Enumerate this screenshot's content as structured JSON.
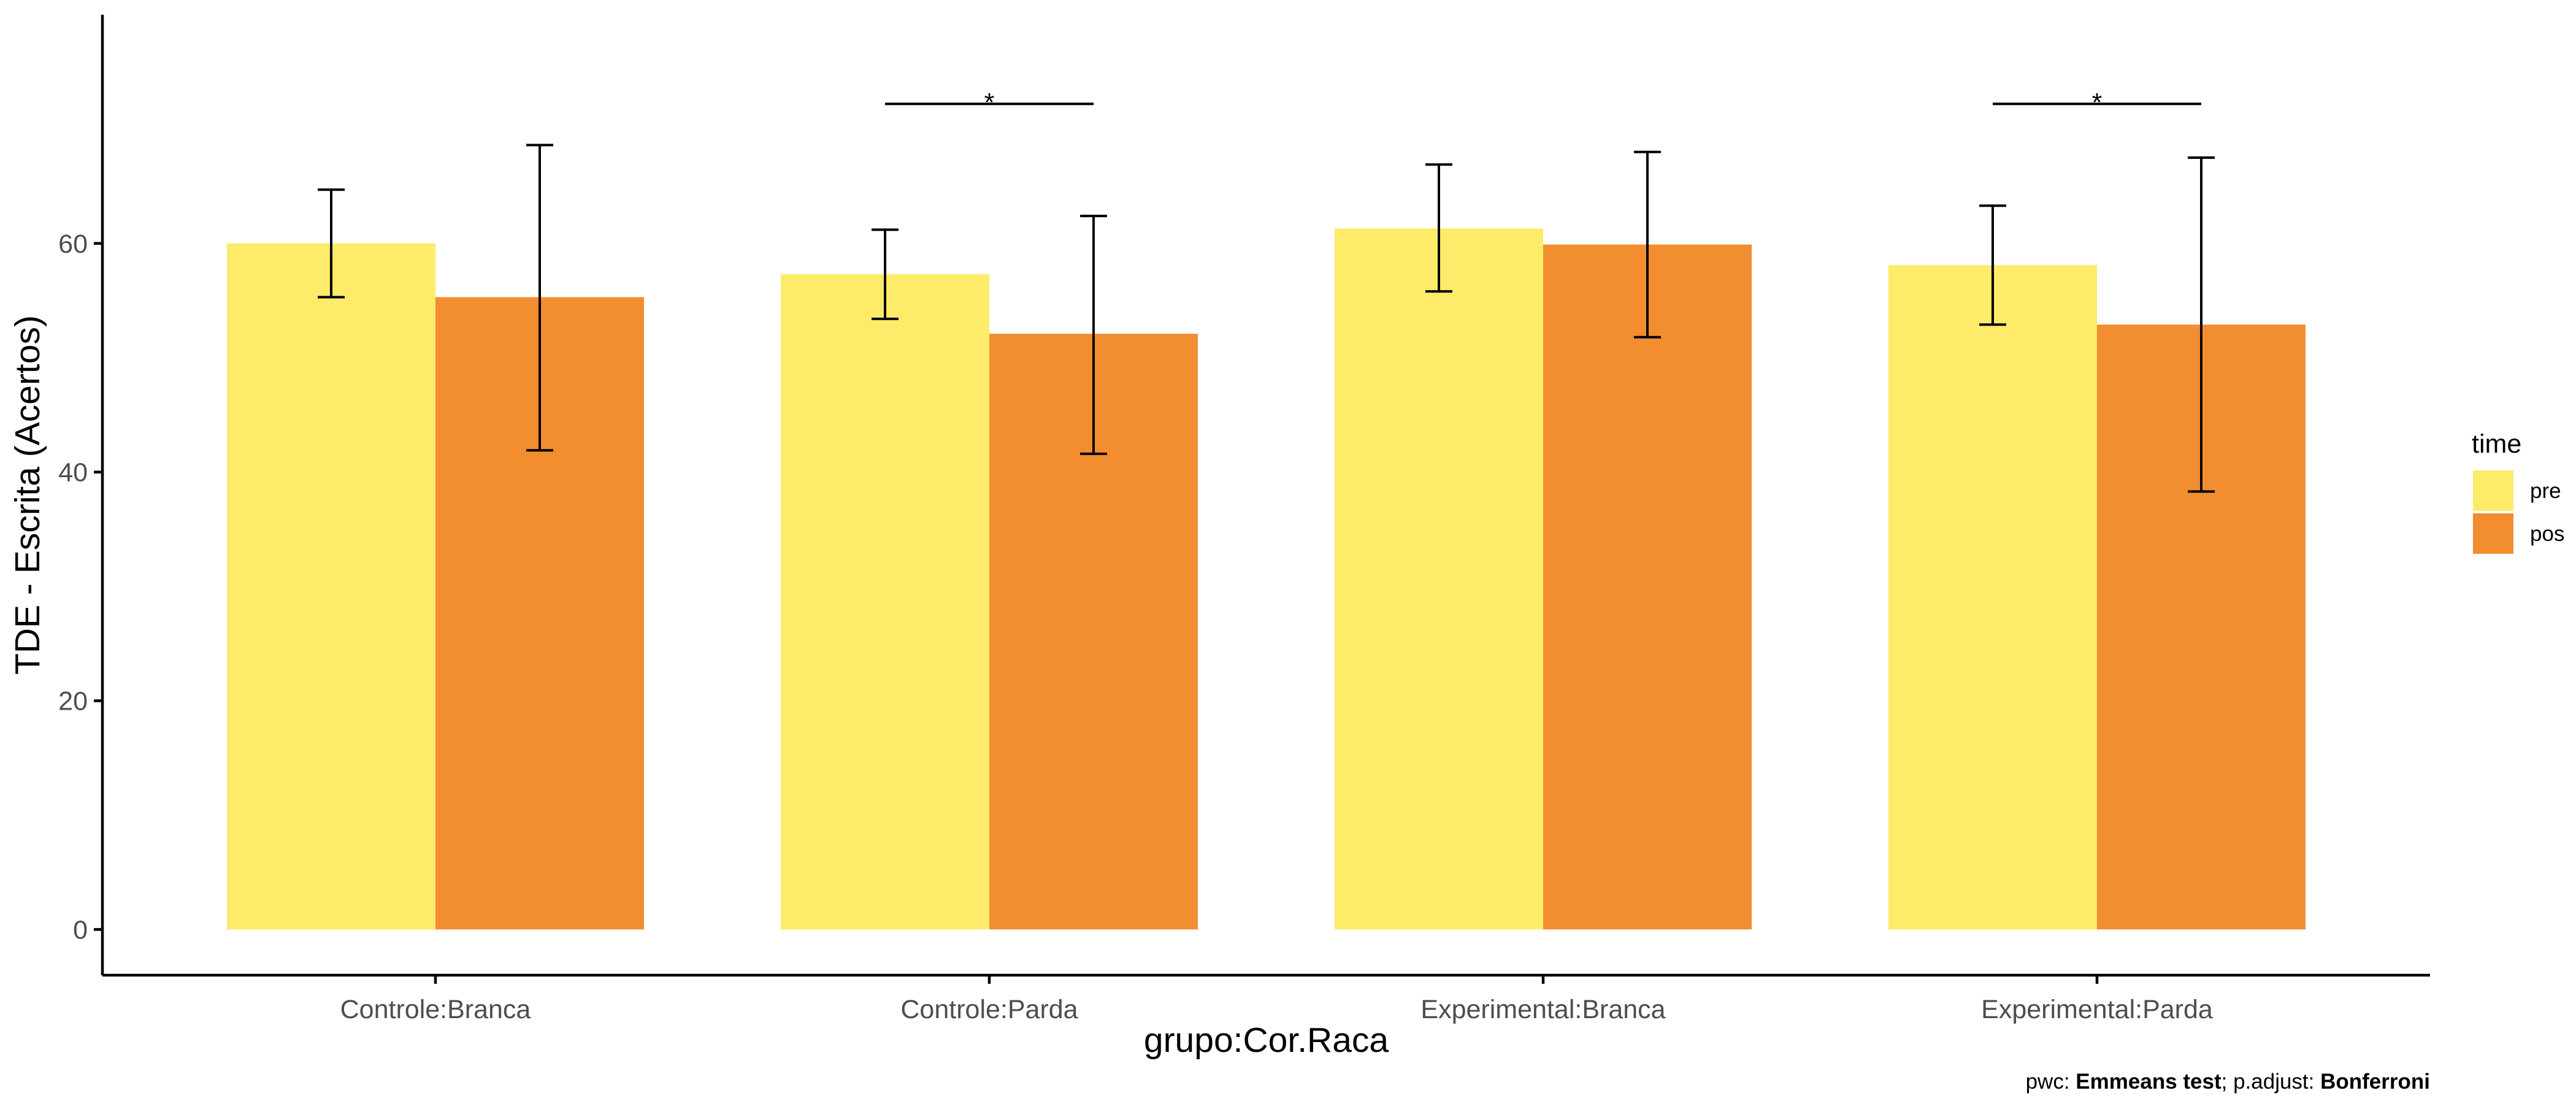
{
  "chart_data": {
    "type": "bar",
    "title": "",
    "xlabel": "grupo:Cor.Raca",
    "ylabel": "TDE - Escrita (Acertos)",
    "ylim": [
      -4,
      80
    ],
    "yticks": [
      0,
      20,
      40,
      60
    ],
    "grid": false,
    "categories": [
      "Controle:Branca",
      "Controle:Parda",
      "Experimental:Branca",
      "Experimental:Parda"
    ],
    "legend": {
      "title": "time",
      "placement": "right"
    },
    "series": [
      {
        "name": "pre",
        "color": "#FDEB69",
        "values": [
          60.0,
          57.3,
          61.3,
          58.1
        ],
        "error_low": [
          55.3,
          53.4,
          55.8,
          52.9
        ],
        "error_high": [
          64.7,
          61.2,
          66.9,
          63.3
        ]
      },
      {
        "name": "pos",
        "color": "#F28E2F",
        "values": [
          55.3,
          52.1,
          59.9,
          52.9
        ],
        "error_low": [
          41.9,
          41.6,
          51.8,
          38.3
        ],
        "error_high": [
          68.6,
          62.4,
          68.0,
          67.5
        ]
      }
    ],
    "significance": [
      {
        "category": "Controle:Parda",
        "label": "*",
        "y": 72.2
      },
      {
        "category": "Experimental:Parda",
        "label": "*",
        "y": 72.2
      }
    ],
    "caption": {
      "prefix": "pwc: ",
      "test": "Emmeans test",
      "middle": "; p.adjust: ",
      "adjust": "Bonferroni"
    }
  }
}
